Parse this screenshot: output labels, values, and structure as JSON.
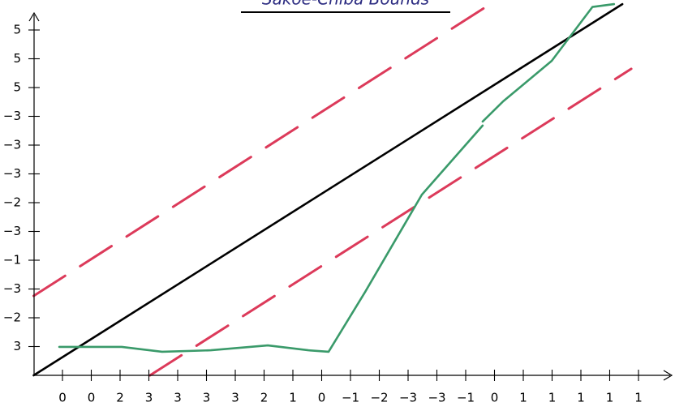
{
  "chart_data": {
    "type": "line",
    "title": "Sakoe-Chiba Bounds",
    "xlim": [
      0,
      22
    ],
    "ylim": [
      0,
      13
    ],
    "xticks": [
      {
        "value": 1,
        "label": "0"
      },
      {
        "value": 2,
        "label": "0"
      },
      {
        "value": 3,
        "label": "2"
      },
      {
        "value": 4,
        "label": "3"
      },
      {
        "value": 5,
        "label": "3"
      },
      {
        "value": 6,
        "label": "3"
      },
      {
        "value": 7,
        "label": "3"
      },
      {
        "value": 8,
        "label": "2"
      },
      {
        "value": 9,
        "label": "1"
      },
      {
        "value": 10,
        "label": "0"
      },
      {
        "value": 11,
        "label": "−1"
      },
      {
        "value": 12,
        "label": "−2"
      },
      {
        "value": 13,
        "label": "−3"
      },
      {
        "value": 14,
        "label": "−3"
      },
      {
        "value": 15,
        "label": "−1"
      },
      {
        "value": 16,
        "label": "0"
      },
      {
        "value": 17,
        "label": "1"
      },
      {
        "value": 18,
        "label": "1"
      },
      {
        "value": 19,
        "label": "1"
      },
      {
        "value": 20,
        "label": "1"
      },
      {
        "value": 21,
        "label": "1"
      }
    ],
    "yticks": [
      {
        "value": 1,
        "label": "3"
      },
      {
        "value": 2,
        "label": "−2"
      },
      {
        "value": 3,
        "label": "−3"
      },
      {
        "value": 4,
        "label": "−1"
      },
      {
        "value": 5,
        "label": "−3"
      },
      {
        "value": 6,
        "label": "−2"
      },
      {
        "value": 7,
        "label": "−3"
      },
      {
        "value": 8,
        "label": "−3"
      },
      {
        "value": 9,
        "label": "−3"
      },
      {
        "value": 10,
        "label": "5"
      },
      {
        "value": 11,
        "label": "5"
      },
      {
        "value": 12,
        "label": "5"
      }
    ],
    "series": [
      {
        "color": "#dc3a5a",
        "dashed": true,
        "x": [
          0,
          16.07
        ],
        "values": [
          2.76,
          13.04
        ]
      },
      {
        "color": "#dc3a5a",
        "dashed": true,
        "x": [
          4.04,
          20.75
        ],
        "values": [
          0,
          10.65
        ]
      },
      {
        "color": "#000000",
        "dashed": false,
        "x": [
          0,
          20.44
        ],
        "values": [
          0,
          12.9
        ]
      },
      {
        "color": "#3a9a6a",
        "dashed": false,
        "x": [
          0.89,
          3.06,
          4.46,
          6.15,
          8.13,
          9.54,
          10.24,
          11.51,
          13.48,
          15.59,
          15.6,
          15.59,
          16.3,
          17.99,
          19.4,
          20.15
        ],
        "values": [
          0.99,
          0.99,
          0.82,
          0.87,
          1.04,
          0.87,
          0.82,
          2.9,
          6.28,
          8.68,
          null,
          8.82,
          9.52,
          10.93,
          12.8,
          12.9
        ]
      }
    ]
  }
}
